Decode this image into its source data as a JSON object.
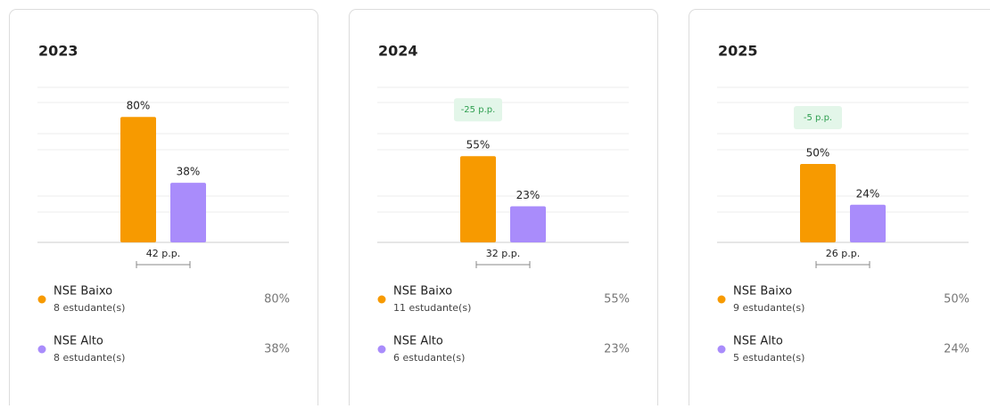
{
  "chart_data": [
    {
      "type": "bar",
      "title": "2023",
      "ylim": [
        0,
        100
      ],
      "grid": true,
      "series": [
        {
          "name": "NSE Baixo",
          "color": "#f79a00",
          "values": [
            80
          ],
          "value_labels": [
            "80%"
          ],
          "students": "8 estudante(s)"
        },
        {
          "name": "NSE Alto",
          "color": "#a98cfb",
          "values": [
            38
          ],
          "value_labels": [
            "38%"
          ],
          "students": "8 estudante(s)"
        }
      ],
      "gap_label": "42 p.p."
    },
    {
      "type": "bar",
      "title": "2024",
      "ylim": [
        0,
        100
      ],
      "grid": true,
      "series": [
        {
          "name": "NSE Baixo",
          "color": "#f79a00",
          "values": [
            55
          ],
          "value_labels": [
            "55%"
          ],
          "students": "11 estudante(s)"
        },
        {
          "name": "NSE Alto",
          "color": "#a98cfb",
          "values": [
            23
          ],
          "value_labels": [
            "23%"
          ],
          "students": "6 estudante(s)"
        }
      ],
      "gap_label": "32 p.p.",
      "change_label": "-25 p.p."
    },
    {
      "type": "bar",
      "title": "2025",
      "ylim": [
        0,
        100
      ],
      "grid": true,
      "series": [
        {
          "name": "NSE Baixo",
          "color": "#f79a00",
          "values": [
            50
          ],
          "value_labels": [
            "50%"
          ],
          "students": "9 estudante(s)"
        },
        {
          "name": "NSE Alto",
          "color": "#a98cfb",
          "values": [
            24
          ],
          "value_labels": [
            "24%"
          ],
          "students": "5 estudante(s)"
        }
      ],
      "gap_label": "26 p.p.",
      "change_label": "-5 p.p."
    }
  ]
}
